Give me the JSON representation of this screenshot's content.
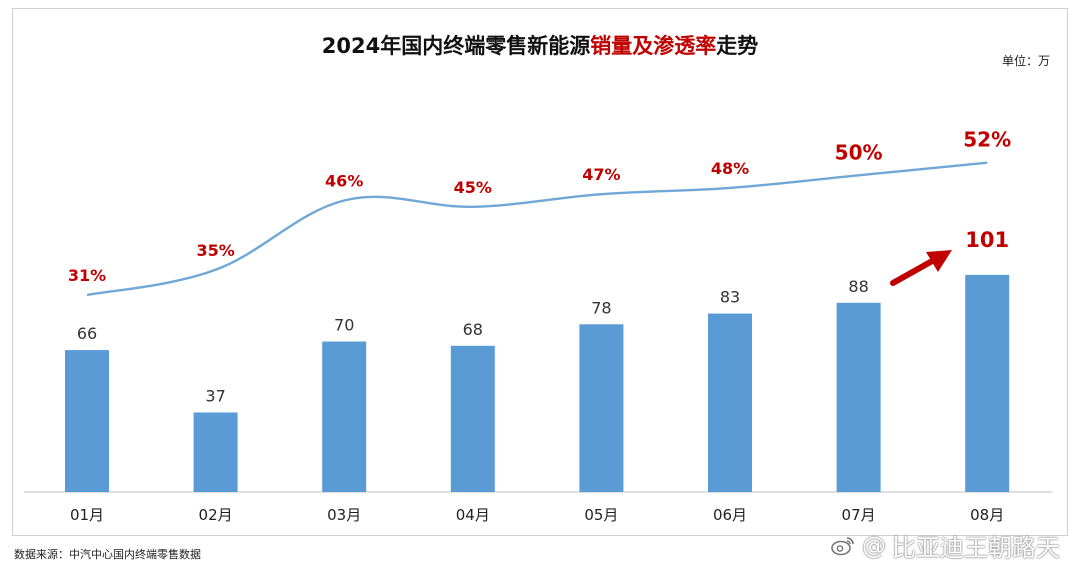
{
  "chart_title": {
    "part1": "2024年国内终端零售新能源",
    "part2": "销量及渗透率",
    "part3": "走势"
  },
  "unit_label": "单位：万",
  "source_label": "数据来源：中汽中心国内终端零售数据",
  "watermark": {
    "at": "@",
    "text": "比亚迪王朝路天",
    "icon": "weibo-icon"
  },
  "colors": {
    "bar": "#5b9bd5",
    "line": "#6fa8d6",
    "accent": "#c00000"
  },
  "chart_data": {
    "type": "bar",
    "categories": [
      "01月",
      "02月",
      "03月",
      "04月",
      "05月",
      "06月",
      "07月",
      "08月"
    ],
    "series": [
      {
        "type": "bar",
        "values": [
          66,
          37,
          70,
          68,
          78,
          83,
          88,
          101
        ]
      },
      {
        "type": "line",
        "values": [
          31,
          35,
          46,
          45,
          47,
          48,
          50,
          52
        ]
      }
    ],
    "bar_labels": [
      "66",
      "37",
      "70",
      "68",
      "78",
      "83",
      "88",
      "101"
    ],
    "line_labels": [
      "31%",
      "35%",
      "46%",
      "45%",
      "47%",
      "48%",
      "50%",
      "52%"
    ],
    "title": "2024年国内终端零售新能源销量及渗透率走势",
    "unit": "单位：万",
    "grid": false,
    "legend": "none"
  }
}
